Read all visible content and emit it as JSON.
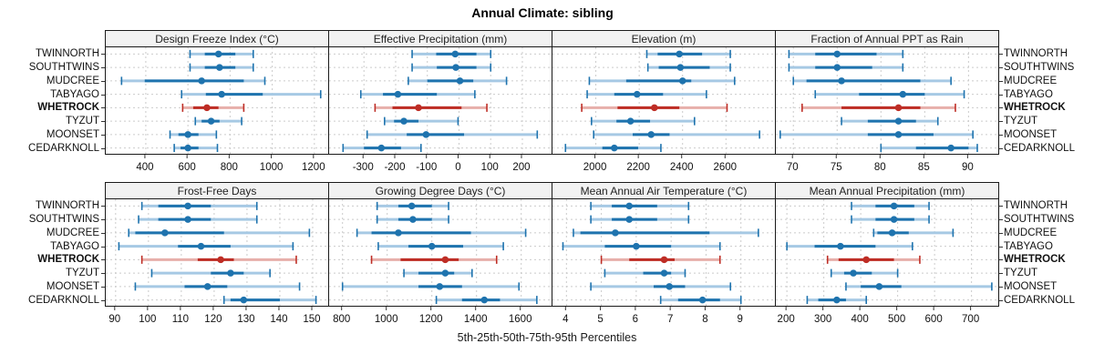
{
  "title": "Annual Climate: sibling",
  "footer": "5th-25th-50th-75th-95th Percentiles",
  "sites": [
    "TWINNORTH",
    "SOUTHTWINS",
    "MUDCREE",
    "TABYAGO",
    "WHETROCK",
    "TYZUT",
    "MOONSET",
    "CEDARKNOLL"
  ],
  "highlight_site": "WHETROCK",
  "colors": {
    "series": "#1E73AE",
    "series_light": "#A6C9E4",
    "highlight": "#BE2D25",
    "highlight_light": "#E7AFAA",
    "strip_bg": "#F2F2F2",
    "grid": "#CBCBCB",
    "border": "#1A1A1A",
    "tick": "#333333"
  },
  "chart_data": {
    "type": "dot-whisker-trellis",
    "percentiles": [
      5,
      25,
      50,
      75,
      95
    ],
    "layout": {
      "rows": 2,
      "cols": 4,
      "grid": "dashed",
      "labels_both_sides": true
    },
    "panels": [
      {
        "title": "Design Freeze Index (°C)",
        "xlim": [
          210,
          1270
        ],
        "ticks": [
          400,
          600,
          800,
          1000,
          1200
        ],
        "values": {
          "TWINNORTH": [
            610,
            680,
            745,
            825,
            910
          ],
          "SOUTHTWINS": [
            610,
            680,
            750,
            825,
            910
          ],
          "MUDCREE": [
            285,
            395,
            665,
            865,
            965
          ],
          "TABYAGO": [
            570,
            685,
            760,
            955,
            1230
          ],
          "WHETROCK": [
            575,
            625,
            690,
            745,
            865
          ],
          "TYZUT": [
            635,
            665,
            710,
            750,
            855
          ],
          "MOONSET": [
            515,
            555,
            600,
            650,
            735
          ],
          "CEDARKNOLL": [
            535,
            565,
            600,
            650,
            740
          ]
        }
      },
      {
        "title": "Effective Precipitation (mm)",
        "xlim": [
          -410,
          295
        ],
        "ticks": [
          -300,
          -200,
          -100,
          0,
          100,
          200
        ],
        "values": {
          "TWINNORTH": [
            -148,
            -72,
            -12,
            55,
            100
          ],
          "SOUTHTWINS": [
            -148,
            -70,
            -10,
            55,
            100
          ],
          "MUDCREE": [
            -160,
            -100,
            3,
            45,
            150
          ],
          "TABYAGO": [
            -310,
            -240,
            -193,
            -70,
            50
          ],
          "WHETROCK": [
            -265,
            -210,
            -128,
            8,
            88
          ],
          "TYZUT": [
            -235,
            -205,
            -174,
            -128,
            -3
          ],
          "MOONSET": [
            -290,
            -165,
            -104,
            16,
            247
          ],
          "CEDARKNOLL": [
            -366,
            -300,
            -245,
            -183,
            -120
          ]
        }
      },
      {
        "title": "Elevation (m)",
        "xlim": [
          1800,
          2830
        ],
        "ticks": [
          2000,
          2200,
          2400,
          2600
        ],
        "values": {
          "TWINNORTH": [
            2235,
            2285,
            2385,
            2490,
            2620
          ],
          "SOUTHTWINS": [
            2240,
            2290,
            2390,
            2525,
            2620
          ],
          "MUDCREE": [
            1970,
            2140,
            2400,
            2440,
            2640
          ],
          "TABYAGO": [
            1960,
            2085,
            2190,
            2310,
            2510
          ],
          "WHETROCK": [
            1935,
            2100,
            2270,
            2385,
            2605
          ],
          "TYZUT": [
            1980,
            2095,
            2160,
            2250,
            2455
          ],
          "MOONSET": [
            1990,
            2170,
            2255,
            2340,
            2755
          ],
          "CEDARKNOLL": [
            1860,
            2030,
            2085,
            2195,
            2300
          ]
        }
      },
      {
        "title": "Fraction of Annual PPT as Rain",
        "xlim": [
          68,
          93.5
        ],
        "ticks": [
          70,
          75,
          80,
          85,
          90
        ],
        "values": {
          "TWINNORTH": [
            69.5,
            72.5,
            75,
            79.5,
            82.5
          ],
          "SOUTHTWINS": [
            69.5,
            72.5,
            75,
            79,
            82.5
          ],
          "MUDCREE": [
            70,
            71.5,
            75.5,
            84.5,
            88
          ],
          "TABYAGO": [
            72.5,
            77.5,
            82.5,
            85,
            89.5
          ],
          "WHETROCK": [
            71,
            75.5,
            82,
            84.5,
            88.5
          ],
          "TYZUT": [
            75.5,
            78.5,
            82,
            84,
            86.5
          ],
          "MOONSET": [
            68.5,
            78.5,
            82,
            86,
            90.5
          ],
          "CEDARKNOLL": [
            80,
            84,
            88,
            90,
            91
          ]
        }
      },
      {
        "title": "Frost-Free Days",
        "xlim": [
          87,
          155
        ],
        "ticks": [
          90,
          100,
          110,
          120,
          130,
          140,
          150
        ],
        "values": {
          "TWINNORTH": [
            98,
            103,
            112,
            119,
            133
          ],
          "SOUTHTWINS": [
            97,
            103,
            112,
            119,
            133
          ],
          "MUDCREE": [
            94,
            96,
            105,
            123,
            149
          ],
          "TABYAGO": [
            91,
            109,
            116,
            125,
            144
          ],
          "WHETROCK": [
            98,
            115,
            122,
            126,
            145
          ],
          "TYZUT": [
            101,
            119,
            125,
            129,
            137
          ],
          "MOONSET": [
            96,
            111,
            118,
            124,
            146
          ],
          "CEDARKNOLL": [
            123,
            125,
            129,
            140,
            151
          ]
        }
      },
      {
        "title": "Growing Degree Days (°C)",
        "xlim": [
          740,
          1740
        ],
        "ticks": [
          800,
          1000,
          1200,
          1400,
          1600
        ],
        "values": {
          "TWINNORTH": [
            955,
            1050,
            1110,
            1200,
            1275
          ],
          "SOUTHTWINS": [
            955,
            1050,
            1115,
            1200,
            1275
          ],
          "MUDCREE": [
            865,
            930,
            1050,
            1375,
            1620
          ],
          "TABYAGO": [
            960,
            1095,
            1200,
            1340,
            1520
          ],
          "WHETROCK": [
            930,
            1060,
            1260,
            1320,
            1490
          ],
          "TYZUT": [
            1075,
            1140,
            1260,
            1300,
            1380
          ],
          "MOONSET": [
            800,
            1140,
            1235,
            1335,
            1590
          ],
          "CEDARKNOLL": [
            1220,
            1335,
            1435,
            1505,
            1670
          ]
        }
      },
      {
        "title": "Mean Annual Air Temperature (°C)",
        "xlim": [
          3.6,
          10
        ],
        "ticks": [
          4,
          5,
          6,
          7,
          8,
          9
        ],
        "values": {
          "TWINNORTH": [
            4.7,
            5.3,
            5.8,
            6.6,
            7.5
          ],
          "SOUTHTWINS": [
            4.7,
            5.3,
            5.8,
            6.6,
            7.5
          ],
          "MUDCREE": [
            4.2,
            4.4,
            5.4,
            8.1,
            9.5
          ],
          "TABYAGO": [
            3.9,
            5.1,
            6.0,
            7.0,
            8.4
          ],
          "WHETROCK": [
            5.0,
            5.8,
            6.8,
            7.1,
            8.4
          ],
          "TYZUT": [
            5.1,
            6.2,
            6.8,
            7.0,
            7.4
          ],
          "MOONSET": [
            4.7,
            6.5,
            6.95,
            7.4,
            8.7
          ],
          "CEDARKNOLL": [
            6.7,
            7.2,
            7.9,
            8.4,
            9.0
          ]
        }
      },
      {
        "title": "Mean Annual Precipitation (mm)",
        "xlim": [
          170,
          775
        ],
        "ticks": [
          200,
          300,
          400,
          500,
          600,
          700
        ],
        "values": {
          "TWINNORTH": [
            375,
            440,
            490,
            545,
            585
          ],
          "SOUTHTWINS": [
            375,
            440,
            490,
            545,
            585
          ],
          "MUDCREE": [
            435,
            445,
            485,
            530,
            650
          ],
          "TABYAGO": [
            200,
            275,
            345,
            440,
            540
          ],
          "WHETROCK": [
            310,
            340,
            415,
            490,
            560
          ],
          "TYZUT": [
            320,
            355,
            380,
            430,
            500
          ],
          "MOONSET": [
            360,
            400,
            450,
            510,
            755
          ],
          "CEDARKNOLL": [
            255,
            285,
            335,
            360,
            415
          ]
        }
      }
    ]
  }
}
